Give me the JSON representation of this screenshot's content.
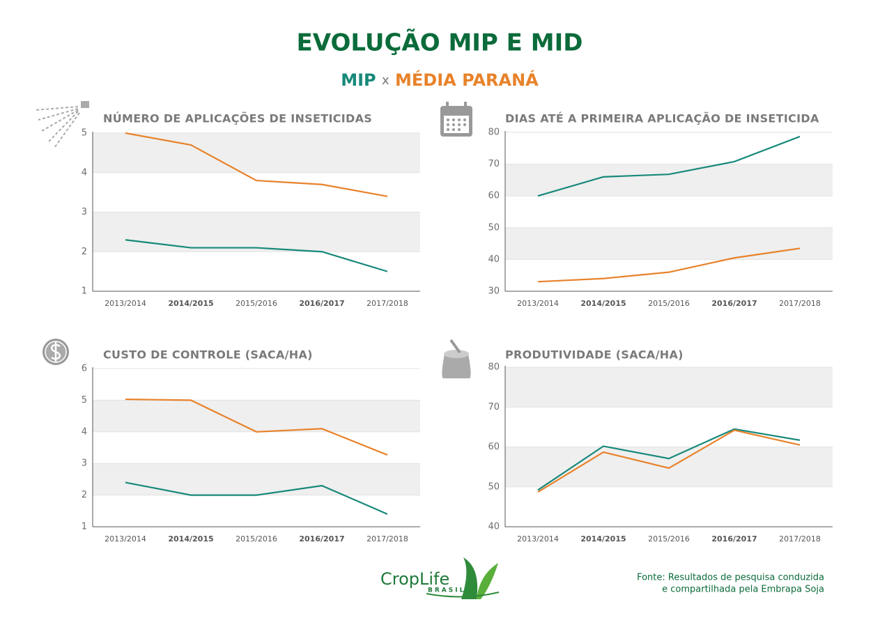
{
  "header": {
    "title": "EVOLUÇÃO MIP E MID",
    "separator": "x"
  },
  "legend": [
    {
      "name": "MIP",
      "color": "#17897a"
    },
    {
      "name": "MÉDIA PARANÁ",
      "color": "#e8822a"
    }
  ],
  "chart_data": [
    {
      "type": "line",
      "title": "NÚMERO DE APLICAÇÕES DE INSETICIDAS",
      "categories": [
        "2013/2014",
        "2014/2015",
        "2015/2016",
        "2016/2017",
        "2017/2018"
      ],
      "series": [
        {
          "values": [
            2.3,
            2.1,
            2.1,
            2.0,
            1.5
          ]
        },
        {
          "values": [
            5,
            4.7,
            3.8,
            3.7,
            3.4
          ]
        }
      ],
      "ylim": [
        1,
        5
      ],
      "yticks": [
        1,
        2,
        3,
        4,
        5
      ]
    },
    {
      "type": "line",
      "title": "DIAS ATÉ A PRIMEIRA APLICAÇÃO DE INSETICIDA",
      "categories": [
        "2013/2014",
        "2014/2015",
        "2015/2016",
        "2016/2017",
        "2017/2018"
      ],
      "series": [
        {
          "values": [
            60,
            66,
            66.8,
            70.8,
            78.7
          ]
        },
        {
          "values": [
            33,
            34,
            36,
            40.5,
            43.5
          ]
        }
      ],
      "ylim": [
        30,
        80
      ],
      "yticks": [
        30,
        40,
        50,
        60,
        70,
        80
      ]
    },
    {
      "type": "line",
      "title": "CUSTO DE CONTROLE (SACA/HA)",
      "categories": [
        "2013/2014",
        "2014/2015",
        "2015/2016",
        "2016/2017",
        "2017/2018"
      ],
      "series": [
        {
          "values": [
            2.4,
            2.0,
            2.0,
            2.3,
            1.4
          ]
        },
        {
          "values": [
            5.03,
            5.0,
            4.0,
            4.1,
            3.27
          ]
        }
      ],
      "ylim": [
        1,
        6
      ],
      "yticks": [
        1,
        2,
        3,
        4,
        5,
        6
      ]
    },
    {
      "type": "line",
      "title": "PRODUTIVIDADE (SACA/HA)",
      "categories": [
        "2013/2014",
        "2014/2015",
        "2015/2016",
        "2016/2017",
        "2017/2018"
      ],
      "series": [
        {
          "values": [
            49.2,
            60.2,
            57.1,
            64.5,
            61.7
          ]
        },
        {
          "values": [
            48.7,
            58.7,
            54.7,
            64.2,
            60.5
          ]
        }
      ],
      "ylim": [
        40,
        80
      ],
      "yticks": [
        40,
        50,
        60,
        70,
        80
      ]
    }
  ],
  "footer": {
    "logo": "CropLife",
    "logo_sub": "BRASIL",
    "source": [
      "Fonte: Resultados de pesquisa conduzida",
      "e compartilhada pela Embrapa Soja"
    ]
  }
}
